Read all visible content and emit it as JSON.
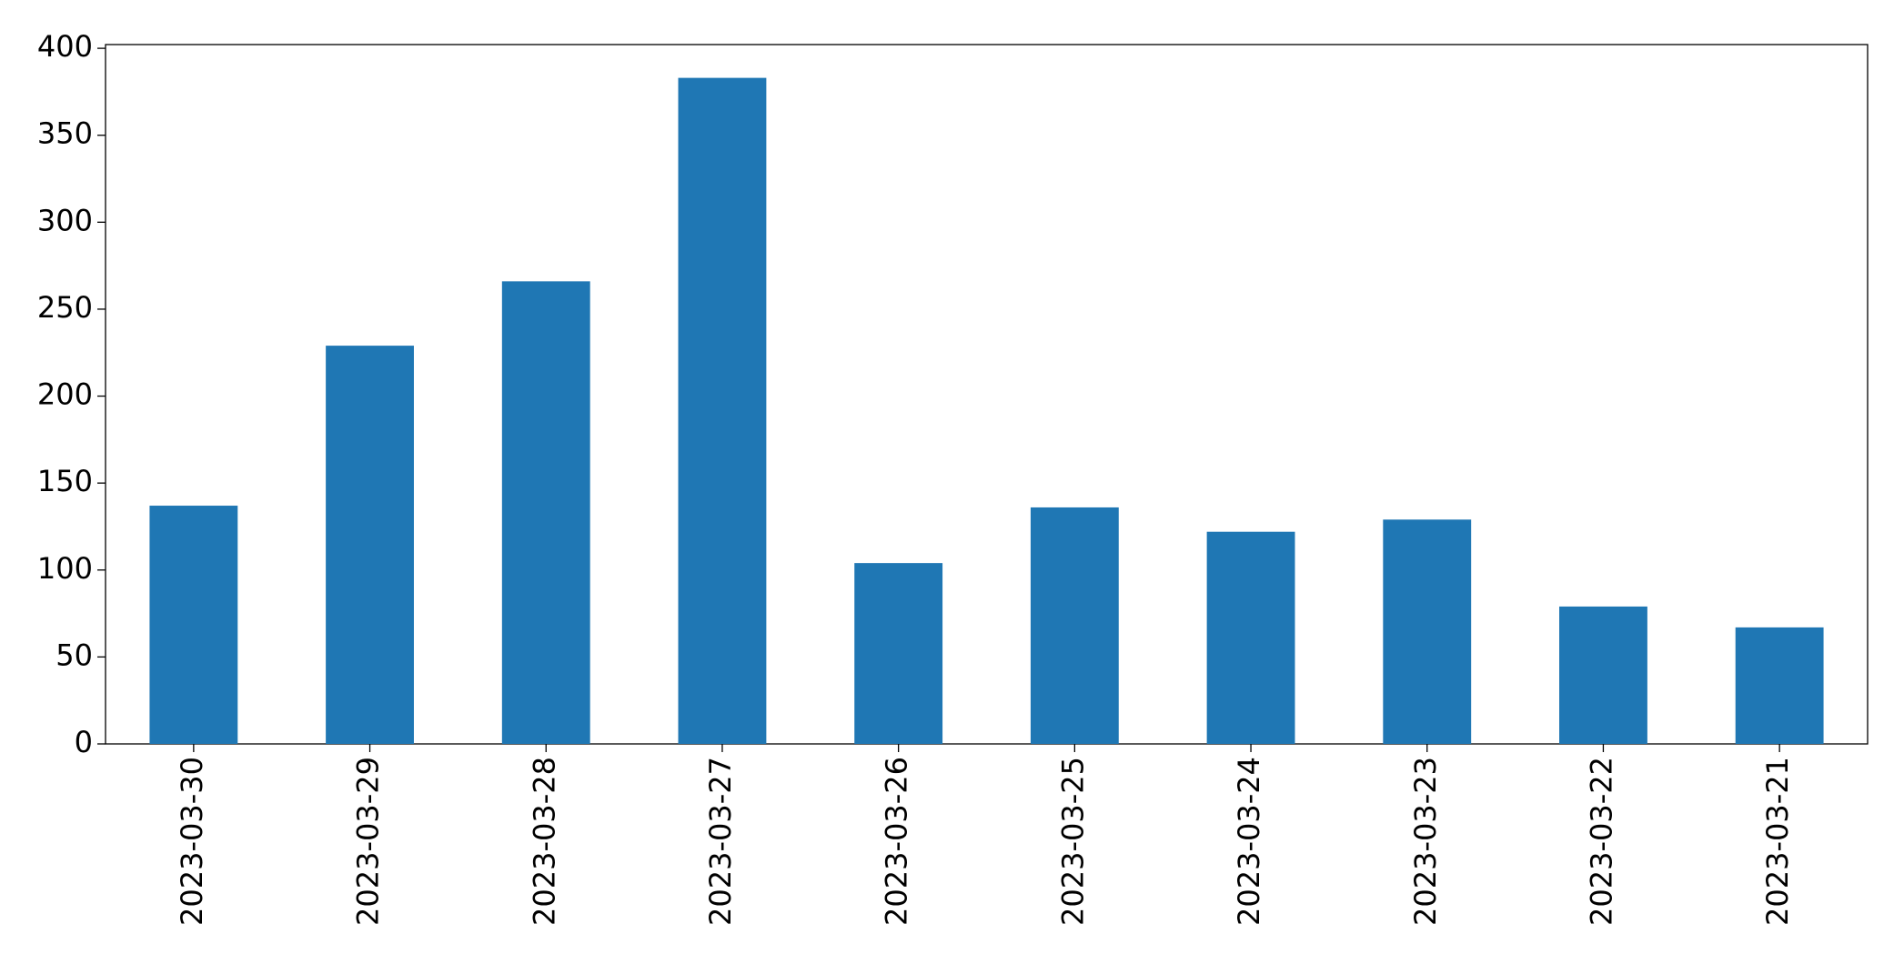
{
  "chart_data": {
    "type": "bar",
    "categories": [
      "2023-03-30",
      "2023-03-29",
      "2023-03-28",
      "2023-03-27",
      "2023-03-26",
      "2023-03-25",
      "2023-03-24",
      "2023-03-23",
      "2023-03-22",
      "2023-03-21"
    ],
    "values": [
      137,
      229,
      266,
      383,
      104,
      136,
      122,
      129,
      79,
      67
    ],
    "color": "#1f77b4",
    "ylim": [
      0,
      402.15
    ],
    "yticks": [
      0,
      50,
      100,
      150,
      200,
      250,
      300,
      350,
      400
    ],
    "grid": false
  }
}
